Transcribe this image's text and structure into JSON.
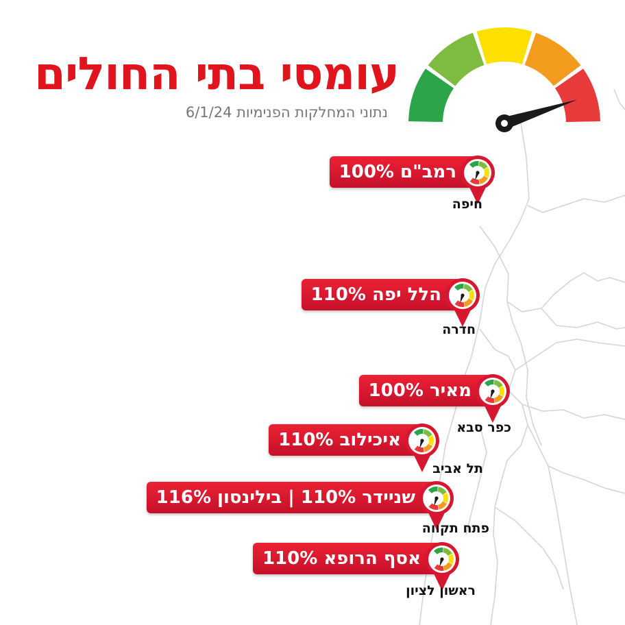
{
  "header": {
    "title": "עומסי בתי החולים",
    "subtitle": "נתוני המחלקות הפנימיות 6/1/24"
  },
  "gauge": {
    "colors": [
      "#2ca448",
      "#7dbb41",
      "#fde000",
      "#f39b1c",
      "#e8393b"
    ],
    "needle_color": "#1a1a1a",
    "needle_level": 0.9
  },
  "hospitals": [
    {
      "label": "רמב\"ם 100%",
      "city": "חיפה"
    },
    {
      "label": "הלל יפה 110%",
      "city": "חדרה"
    },
    {
      "label": "מאיר 100%",
      "city": "כפר סבא"
    },
    {
      "label": "איכילוב 110%",
      "city": "תל אביב"
    },
    {
      "label": "שניידר 110% | בילינסון 116%",
      "city": "פתח תקווה"
    },
    {
      "label": "אסף הרופא 110%",
      "city": "ראשון לציון"
    }
  ],
  "colors": {
    "accent_red": "#e0141d",
    "pill_red": "#d7172f",
    "map_border": "#d5d5d5"
  }
}
